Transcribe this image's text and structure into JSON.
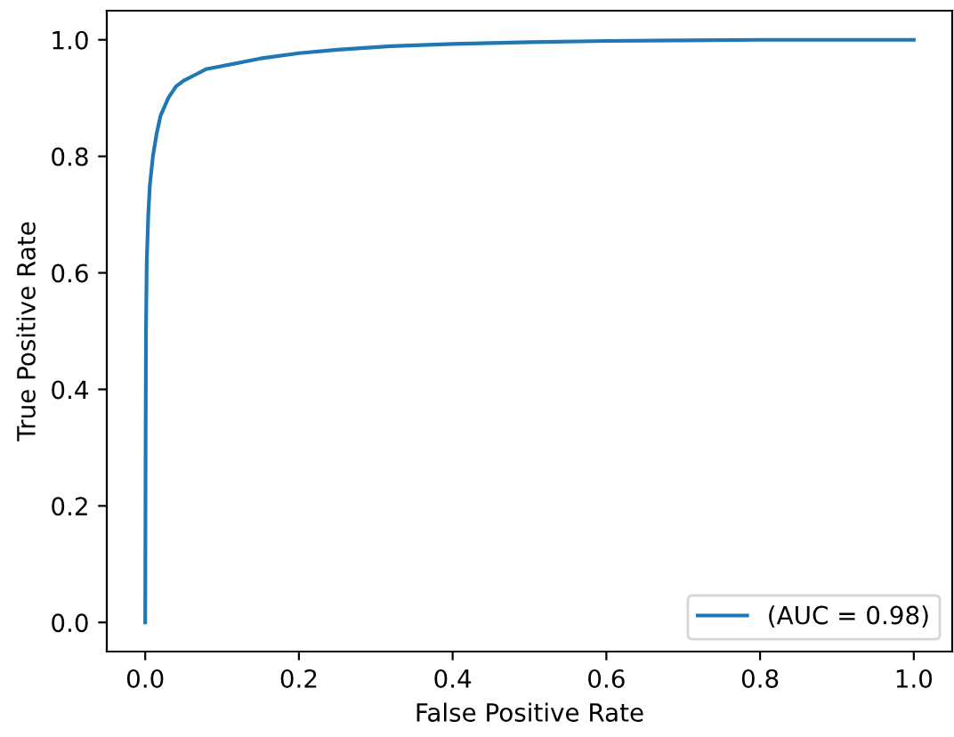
{
  "chart_data": {
    "type": "line",
    "xlabel": "False Positive Rate",
    "ylabel": "True Positive Rate",
    "xlim": [
      -0.05,
      1.05
    ],
    "ylim": [
      -0.05,
      1.05
    ],
    "xticks": [
      {
        "value": 0,
        "label": "0.0"
      },
      0.2,
      0.4,
      0.6,
      0.8,
      {
        "value": 1,
        "label": "1.0"
      }
    ],
    "yticks": [
      {
        "value": 0,
        "label": "0.0"
      },
      0.2,
      0.4,
      0.6,
      0.8,
      {
        "value": 1,
        "label": "1.0"
      }
    ],
    "grid": false,
    "legend": "bottom right",
    "marker": "none",
    "line_style": "solid",
    "series": [
      {
        "name": "(AUC = 0.98)",
        "color": "#1f77b4",
        "x": [
          0,
          0.0005,
          0.001,
          0.002,
          0.004,
          0.006,
          0.01,
          0.015,
          0.02,
          0.03,
          0.04,
          0.05,
          0.065,
          0.08,
          0.1,
          0.15,
          0.2,
          0.25,
          0.32,
          0.4,
          0.5,
          0.6,
          0.7,
          0.8,
          1.0
        ],
        "values": [
          0,
          0.3,
          0.5,
          0.62,
          0.7,
          0.75,
          0.8,
          0.84,
          0.87,
          0.9,
          0.92,
          0.93,
          0.94,
          0.95,
          0.955,
          0.968,
          0.977,
          0.983,
          0.989,
          0.993,
          0.996,
          0.998,
          0.999,
          1.0,
          1.0
        ]
      }
    ]
  }
}
